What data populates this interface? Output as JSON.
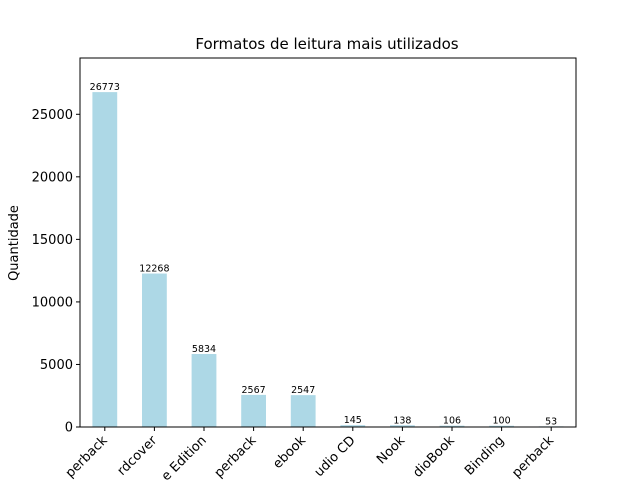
{
  "chart_data": {
    "type": "bar",
    "title": "Formatos de leitura mais utilizados",
    "xlabel": "",
    "ylabel": "Quantidade",
    "categories": [
      "perback",
      "rdcover",
      "e Edition",
      "perback",
      "ebook",
      "udio CD",
      "Nook",
      "dioBook",
      "Binding",
      "perback"
    ],
    "values": [
      26773,
      12268,
      5834,
      2567,
      2547,
      145,
      138,
      106,
      100,
      53
    ],
    "data_labels": [
      "26773",
      "12268",
      "5834",
      "2567",
      "2547",
      "145",
      "138",
      "106",
      "100",
      "53"
    ],
    "yticks": [
      0,
      5000,
      10000,
      15000,
      20000,
      25000
    ],
    "ytick_labels": [
      "0",
      "5000",
      "10000",
      "15000",
      "20000",
      "25000"
    ],
    "ylim": [
      0,
      29500
    ],
    "bar_color": "#add8e6",
    "grid": false,
    "legend": "none"
  }
}
